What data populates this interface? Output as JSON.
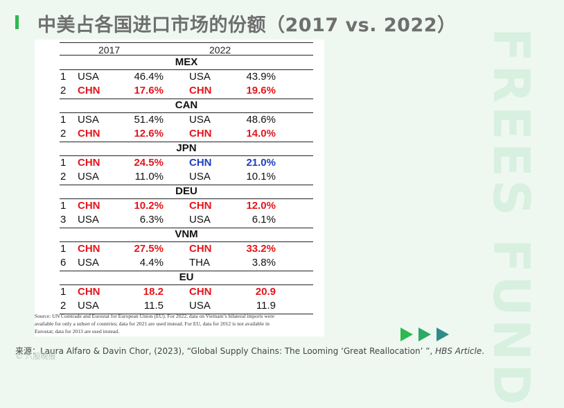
{
  "header": {
    "title": "中美占各国进口市场的份额（2017 vs. 2022）"
  },
  "watermark": {
    "text": "FREES FUND"
  },
  "table": {
    "year_left": "2017",
    "year_right": "2022",
    "groups": [
      {
        "country": "MEX",
        "rows": [
          {
            "rank": "1",
            "c17": "USA",
            "v17": "46.4%",
            "c22": "USA",
            "v22": "43.9%",
            "style17": "black",
            "style22": "black"
          },
          {
            "rank": "2",
            "c17": "CHN",
            "v17": "17.6%",
            "c22": "CHN",
            "v22": "19.6%",
            "style17": "red",
            "style22": "red"
          }
        ]
      },
      {
        "country": "CAN",
        "rows": [
          {
            "rank": "1",
            "c17": "USA",
            "v17": "51.4%",
            "c22": "USA",
            "v22": "48.6%",
            "style17": "black",
            "style22": "black"
          },
          {
            "rank": "2",
            "c17": "CHN",
            "v17": "12.6%",
            "c22": "CHN",
            "v22": "14.0%",
            "style17": "red",
            "style22": "red"
          }
        ]
      },
      {
        "country": "JPN",
        "rows": [
          {
            "rank": "1",
            "c17": "CHN",
            "v17": "24.5%",
            "c22": "CHN",
            "v22": "21.0%",
            "style17": "red",
            "style22": "blue"
          },
          {
            "rank": "2",
            "c17": "USA",
            "v17": "11.0%",
            "c22": "USA",
            "v22": "10.1%",
            "style17": "black",
            "style22": "black"
          }
        ]
      },
      {
        "country": "DEU",
        "rows": [
          {
            "rank": "1",
            "c17": "CHN",
            "v17": "10.2%",
            "c22": "CHN",
            "v22": "12.0%",
            "style17": "red",
            "style22": "red"
          },
          {
            "rank": "3",
            "c17": "USA",
            "v17": "6.3%",
            "c22": "USA",
            "v22": "6.1%",
            "style17": "black",
            "style22": "black"
          }
        ]
      },
      {
        "country": "VNM",
        "rows": [
          {
            "rank": "1",
            "c17": "CHN",
            "v17": "27.5%",
            "c22": "CHN",
            "v22": "33.2%",
            "style17": "red",
            "style22": "red"
          },
          {
            "rank": "6",
            "c17": "USA",
            "v17": "4.4%",
            "c22": "THA",
            "v22": "3.8%",
            "style17": "black",
            "style22": "black"
          }
        ]
      },
      {
        "country": "EU",
        "rows": [
          {
            "rank": "1",
            "c17": "CHN",
            "v17": "18.2",
            "c22": "CHN",
            "v22": "20.9",
            "style17": "red",
            "style22": "red"
          },
          {
            "rank": "2",
            "c17": "USA",
            "v17": "11.5",
            "c22": "USA",
            "v22": "11.9",
            "style17": "black",
            "style22": "black"
          }
        ]
      }
    ],
    "source_lines": [
      "Source: UN Comtrade and Eurostat for European Union (EU). For 2022, data on Vietnam’s bilateral imports were",
      "available for only a subset of countries; data for 2021 are used instead. For EU, data for 2012 is not available in",
      "Eurostat; data for 2013 are used instead."
    ]
  },
  "footer": {
    "citation_prefix": "来源：Laura Alfaro & Davin Chor, (2023), “Global Supply Chains: The Looming ‘Great Reallocation’ ”, ",
    "citation_italic": "HBS Article",
    "citation_suffix": ".",
    "brand": "© 八股晚报"
  },
  "colors": {
    "accent": "#2fb84f",
    "chn_red": "#e3151b",
    "chn_blue": "#1f3fc0",
    "arrow_green": "#2fb84f",
    "arrow_teal": "#2e8c8a"
  }
}
